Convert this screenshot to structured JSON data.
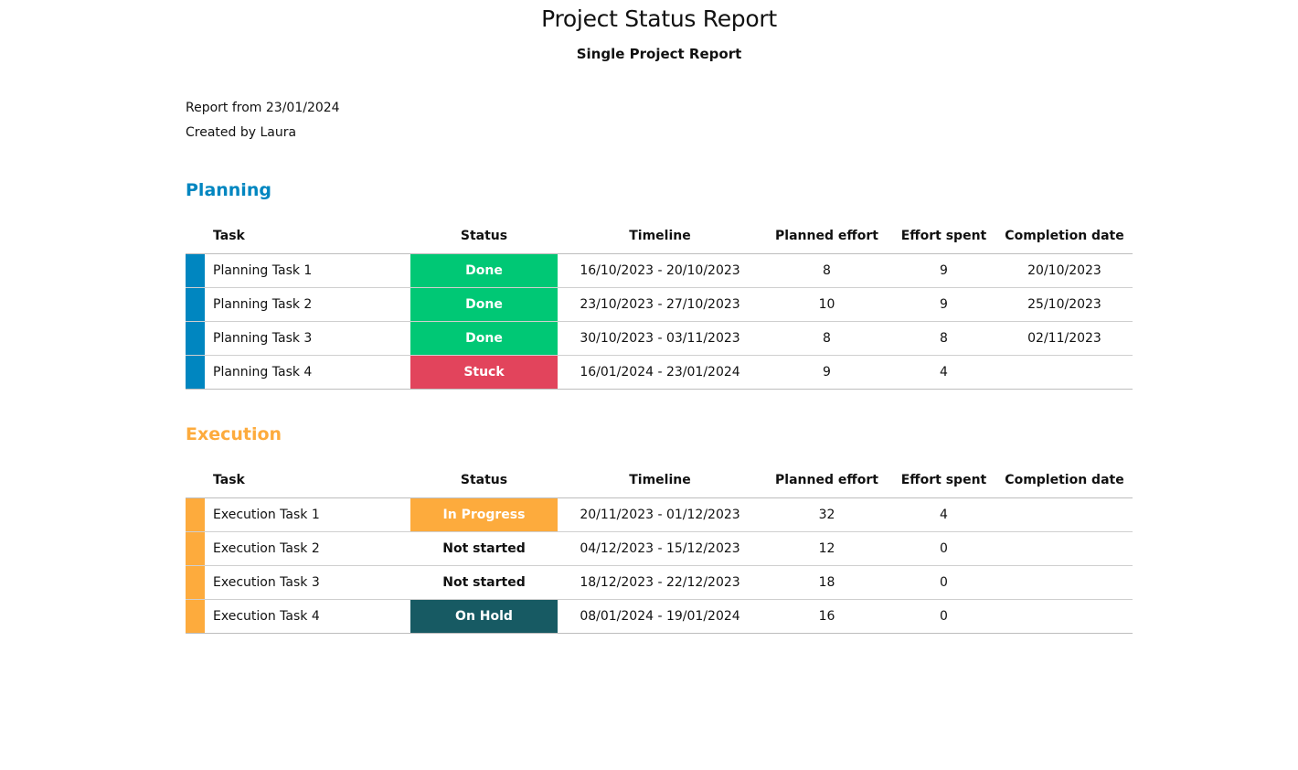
{
  "report": {
    "title": "Project Status Report",
    "subtitle": "Single Project Report",
    "report_from": "Report from 23/01/2024",
    "created_by": "Created by Laura"
  },
  "columns": {
    "task": "Task",
    "status": "Status",
    "timeline": "Timeline",
    "planned_effort": "Planned effort",
    "effort_spent": "Effort spent",
    "completion_date": "Completion date"
  },
  "status_colors": {
    "Done": "#00c875",
    "Stuck": "#e2445c",
    "In Progress": "#fdab3d",
    "Not started": "",
    "On Hold": "#175a63"
  },
  "groups": [
    {
      "name": "Planning",
      "color": "#0086c0",
      "rows": [
        {
          "task": "Planning Task 1",
          "status": "Done",
          "timeline": "16/10/2023 - 20/10/2023",
          "planned_effort": "8",
          "effort_spent": "9",
          "completion_date": "20/10/2023"
        },
        {
          "task": "Planning Task 2",
          "status": "Done",
          "timeline": "23/10/2023 - 27/10/2023",
          "planned_effort": "10",
          "effort_spent": "9",
          "completion_date": "25/10/2023"
        },
        {
          "task": "Planning Task 3",
          "status": "Done",
          "timeline": "30/10/2023 - 03/11/2023",
          "planned_effort": "8",
          "effort_spent": "8",
          "completion_date": "02/11/2023"
        },
        {
          "task": "Planning Task 4",
          "status": "Stuck",
          "timeline": "16/01/2024 - 23/01/2024",
          "planned_effort": "9",
          "effort_spent": "4",
          "completion_date": ""
        }
      ]
    },
    {
      "name": "Execution",
      "color": "#fdab3d",
      "rows": [
        {
          "task": "Execution Task 1",
          "status": "In Progress",
          "timeline": "20/11/2023 - 01/12/2023",
          "planned_effort": "32",
          "effort_spent": "4",
          "completion_date": ""
        },
        {
          "task": "Execution Task 2",
          "status": "Not started",
          "timeline": "04/12/2023 - 15/12/2023",
          "planned_effort": "12",
          "effort_spent": "0",
          "completion_date": ""
        },
        {
          "task": "Execution Task 3",
          "status": "Not started",
          "timeline": "18/12/2023 - 22/12/2023",
          "planned_effort": "18",
          "effort_spent": "0",
          "completion_date": ""
        },
        {
          "task": "Execution Task 4",
          "status": "On Hold",
          "timeline": "08/01/2024 - 19/01/2024",
          "planned_effort": "16",
          "effort_spent": "0",
          "completion_date": ""
        }
      ]
    }
  ]
}
